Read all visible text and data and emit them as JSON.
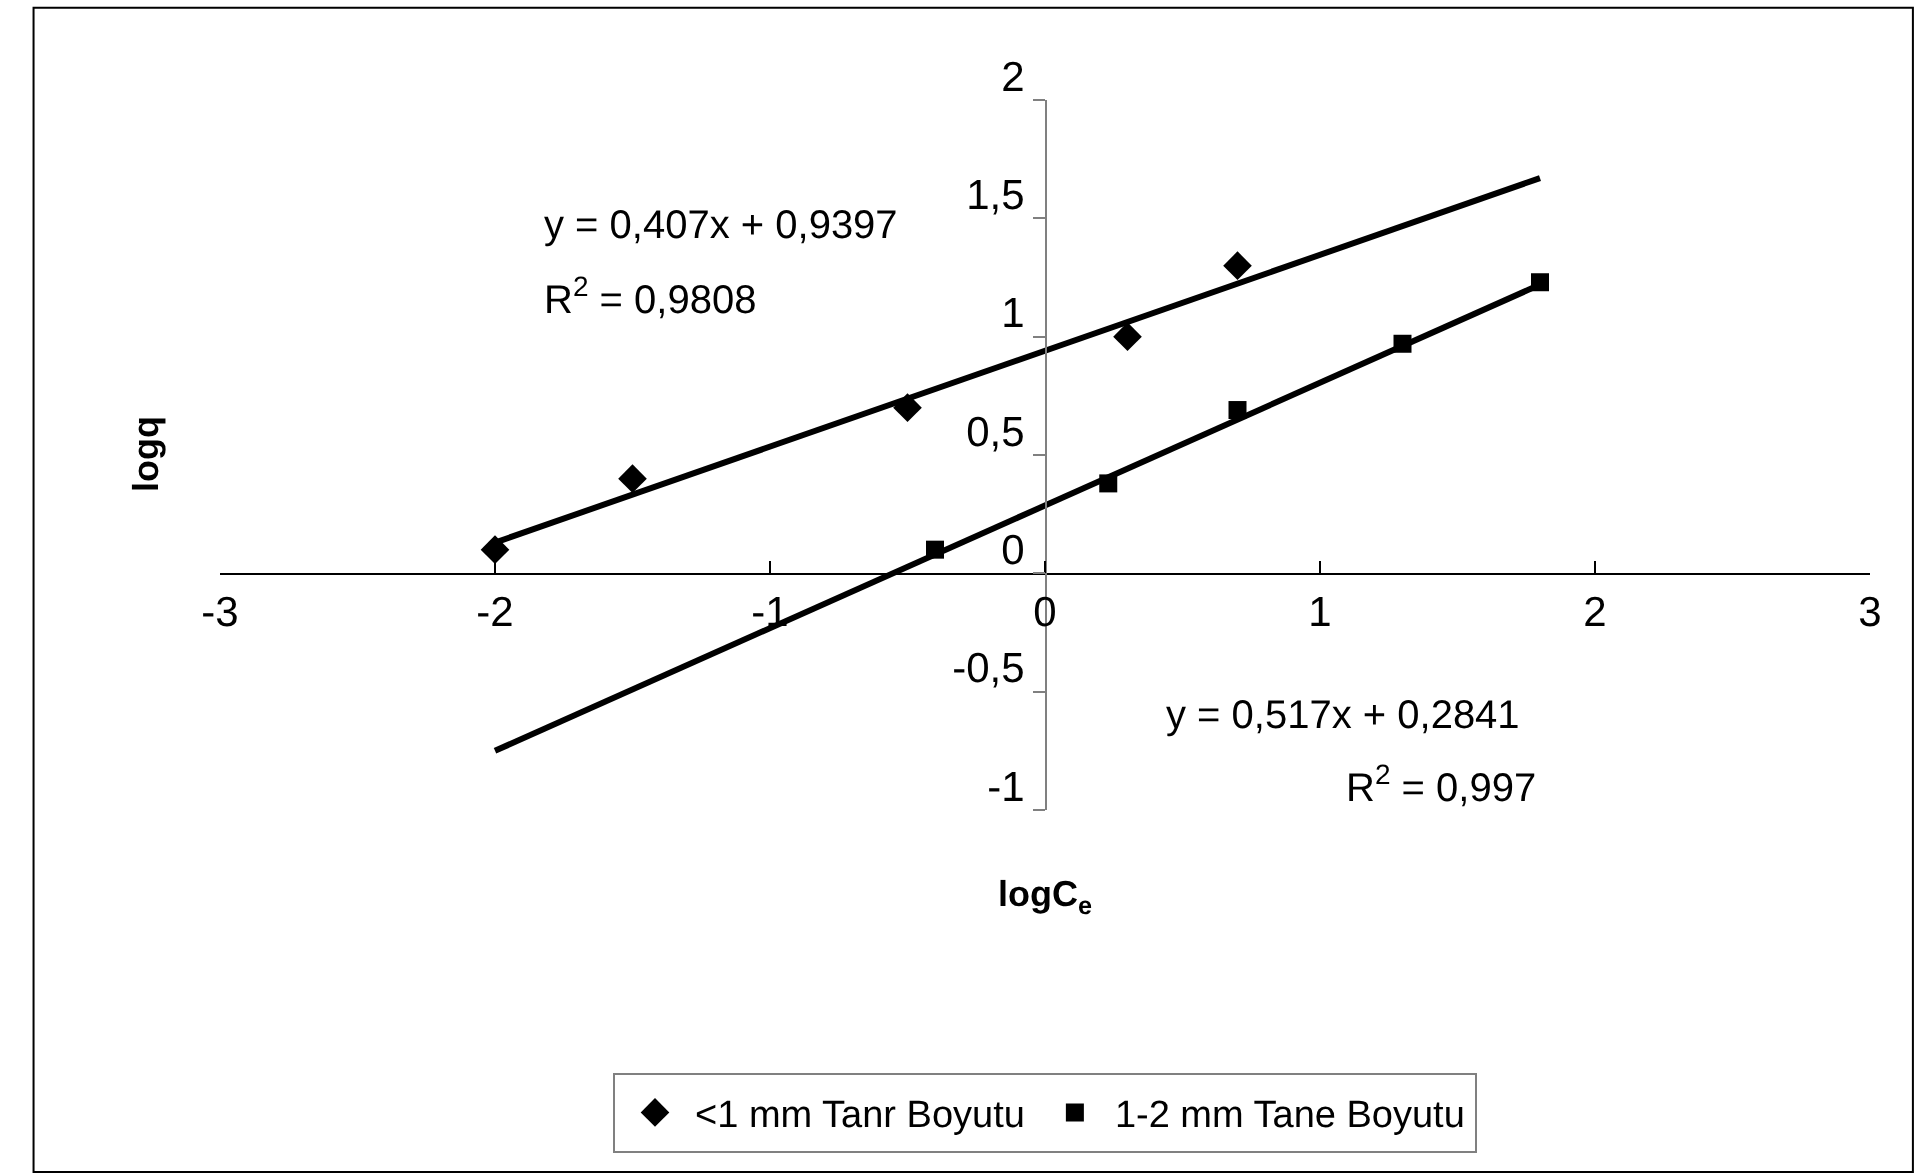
{
  "chart_data": {
    "type": "scatter",
    "xlabel": "logC$_{e}$",
    "ylabel": "logq",
    "xlim": [
      -3,
      3
    ],
    "ylim": [
      -1,
      2
    ],
    "xticks": [
      -3,
      -2,
      -1,
      0,
      1,
      2,
      3
    ],
    "yticks": [
      -1,
      {
        "value": -0.5,
        "label": "-0,5"
      },
      0,
      {
        "value": 0.5,
        "label": "0,5"
      },
      1,
      {
        "value": 1.5,
        "label": "1,5"
      },
      2
    ],
    "grid": false,
    "legend": "bottom",
    "series": [
      {
        "name": "<1 mm Tanr Boyutu",
        "color": "#000000",
        "marker": "diamond",
        "x": [
          -2,
          -1.5,
          -0.5,
          0.3,
          0.7
        ],
        "values": [
          0.1,
          0.4,
          0.7,
          1.0,
          1.3
        ]
      },
      {
        "name": "1-2 mm Tane Boyutu",
        "color": "#000000",
        "marker": "square",
        "x": [
          -0.4,
          0.23,
          0.7,
          1.3,
          1.8
        ],
        "values": [
          0.1,
          0.38,
          0.69,
          0.97,
          1.23
        ]
      },
      {
        "type": "line",
        "color": "#000000",
        "marker": "none",
        "x": [
          -2,
          1.8
        ],
        "values": [
          0.13,
          1.67
        ]
      },
      {
        "type": "line",
        "color": "#000000",
        "marker": "none",
        "x": [
          -2,
          1.8
        ],
        "values": [
          -0.75,
          1.22
        ]
      }
    ],
    "annotations": [
      "y = 0,407x + 0,9397",
      "R$^{2}$ = 0,9808",
      "y = 0,517x + 0,2841",
      "R$^{2}$ = 0,997"
    ]
  }
}
